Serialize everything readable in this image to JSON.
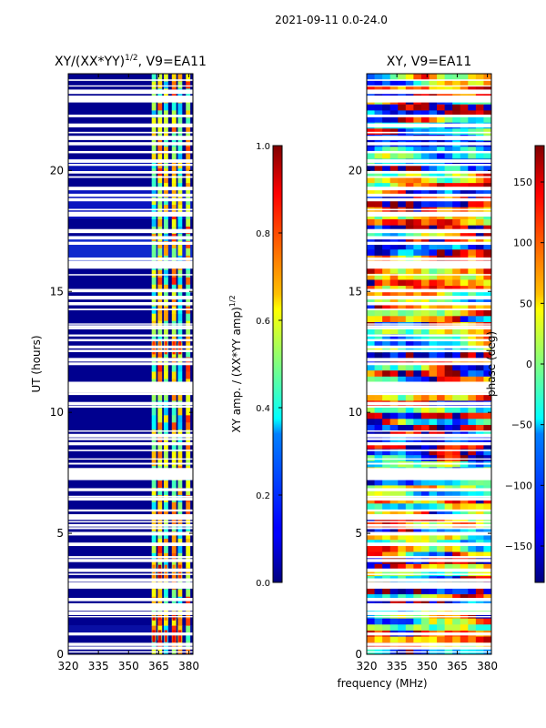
{
  "suptitle": "2021-09-11 0.0-24.0",
  "xlabel_shared": "frequency (MHz)",
  "chart_data": [
    {
      "type": "heatmap",
      "title_main": "XY/(XX*YY)",
      "title_sup": "1/2",
      "title_suffix": ", V9=EA11",
      "xlabel": "",
      "ylabel": "UT (hours)",
      "xlim": [
        320,
        382
      ],
      "ylim": [
        0,
        24
      ],
      "xticks": [
        320,
        335,
        350,
        365,
        380
      ],
      "yticks": [
        0,
        5,
        10,
        15,
        20
      ],
      "colorbar": {
        "label_main": "XY amp. / (XX*YY amp)",
        "label_sup": "1/2",
        "range": [
          0.0,
          1.0
        ],
        "ticks": [
          0.0,
          0.2,
          0.4,
          0.6,
          0.8,
          1.0
        ],
        "tick_labels": [
          "0.0",
          "0.2",
          "0.4",
          "0.6",
          "0.8",
          "1.0"
        ],
        "colormap": "jet"
      }
    },
    {
      "type": "heatmap",
      "title": "XY, V9=EA11",
      "xlabel": "frequency (MHz)",
      "ylabel": "",
      "xlim": [
        320,
        382
      ],
      "ylim": [
        0,
        24
      ],
      "xticks": [
        320,
        335,
        350,
        365,
        380
      ],
      "yticks": [
        0,
        5,
        10,
        15,
        20
      ],
      "colorbar": {
        "label": "phase (deg)",
        "range": [
          -180,
          180
        ],
        "ticks": [
          -150,
          -100,
          -50,
          0,
          50,
          100,
          150
        ],
        "tick_labels": [
          "−150",
          "−100",
          "−50",
          "0",
          "50",
          "100",
          "150"
        ],
        "colormap": "jet"
      }
    }
  ],
  "colors": {
    "jet_dark_blue": "#00007f",
    "jet_blue": "#0000ff",
    "jet_cyan": "#00ffff",
    "jet_yellow": "#ffff00",
    "jet_red": "#ff0000",
    "jet_dark_red": "#7f0000"
  }
}
